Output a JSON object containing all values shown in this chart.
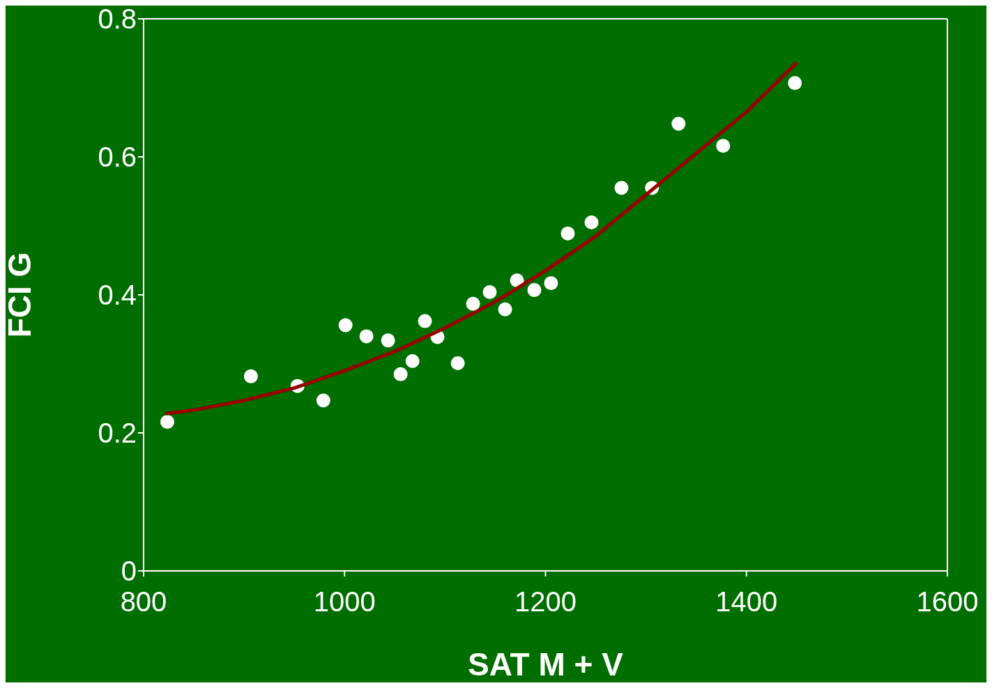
{
  "chart_data": {
    "type": "scatter",
    "xlabel": "SAT M + V",
    "ylabel": "FCI G",
    "x": [
      823.6,
      906.8,
      953.2,
      978.9,
      1001,
      1021.8,
      1043.3,
      1055.8,
      1067.6,
      1080,
      1092.5,
      1112.7,
      1127.9,
      1144.5,
      1159.8,
      1171.6,
      1188.9,
      1205.5,
      1222.2,
      1245.8,
      1275.6,
      1306,
      1332.4,
      1376.8,
      1448.2
    ],
    "series": [
      {
        "color": "#ffffff",
        "marker": "circle",
        "values": [
          0.216,
          0.282,
          0.268,
          0.247,
          0.356,
          0.34,
          0.334,
          0.285,
          0.304,
          0.362,
          0.339,
          0.301,
          0.387,
          0.404,
          0.379,
          0.421,
          0.407,
          0.417,
          0.489,
          0.505,
          0.555,
          0.555,
          0.648,
          0.616,
          0.707
        ]
      },
      {
        "type": "line",
        "marker": "none",
        "color": "#990000",
        "x": [
          823,
          850,
          900,
          950,
          1000,
          1050,
          1100,
          1150,
          1200,
          1250,
          1300,
          1350,
          1400,
          1449
        ],
        "values": [
          0.228,
          0.233,
          0.247,
          0.265,
          0.29,
          0.318,
          0.352,
          0.39,
          0.435,
          0.485,
          0.545,
          0.605,
          0.665,
          0.735
        ]
      }
    ],
    "xlim": [
      800,
      1600
    ],
    "xticks": [
      800,
      1000,
      1200,
      1400,
      1600
    ],
    "ylim": [
      0,
      0.8
    ],
    "yticks": [
      0,
      0.2,
      0.4,
      0.6,
      0.8
    ],
    "grid": false,
    "legend": false,
    "line_style": "solid"
  }
}
